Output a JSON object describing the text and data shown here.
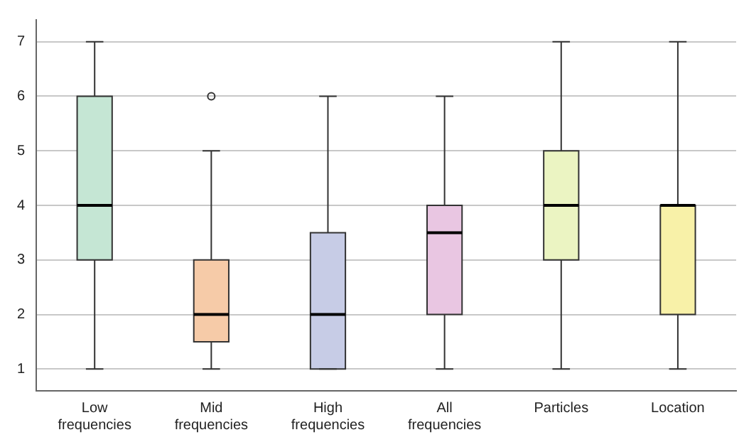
{
  "chart_data": {
    "type": "box",
    "categories": [
      "Low frequencies",
      "Mid frequencies",
      "High frequencies",
      "All frequencies",
      "Particles",
      "Location"
    ],
    "colors": [
      "#c5e6d4",
      "#f6cba8",
      "#c7cce6",
      "#e9c6e2",
      "#ebf4c2",
      "#f8f1a8"
    ],
    "boxes": [
      {
        "low": 1,
        "q1": 3,
        "median": 4,
        "q3": 6,
        "high": 7
      },
      {
        "low": 1,
        "q1": 1.5,
        "median": 2,
        "q3": 3,
        "high": 5,
        "outliers": [
          6
        ]
      },
      {
        "low": 1,
        "q1": 1,
        "median": 2,
        "q3": 3.5,
        "high": 6
      },
      {
        "low": 1,
        "q1": 2,
        "median": 3.5,
        "q3": 4,
        "high": 6
      },
      {
        "low": 1,
        "q1": 3,
        "median": 4,
        "q3": 5,
        "high": 7
      },
      {
        "low": 1,
        "q1": 2,
        "median": 4,
        "q3": 4,
        "high": 7
      }
    ],
    "ylim": [
      0.6,
      7.4
    ],
    "yticks": [
      1,
      2,
      3,
      4,
      5,
      6,
      7
    ],
    "grid": "y"
  }
}
